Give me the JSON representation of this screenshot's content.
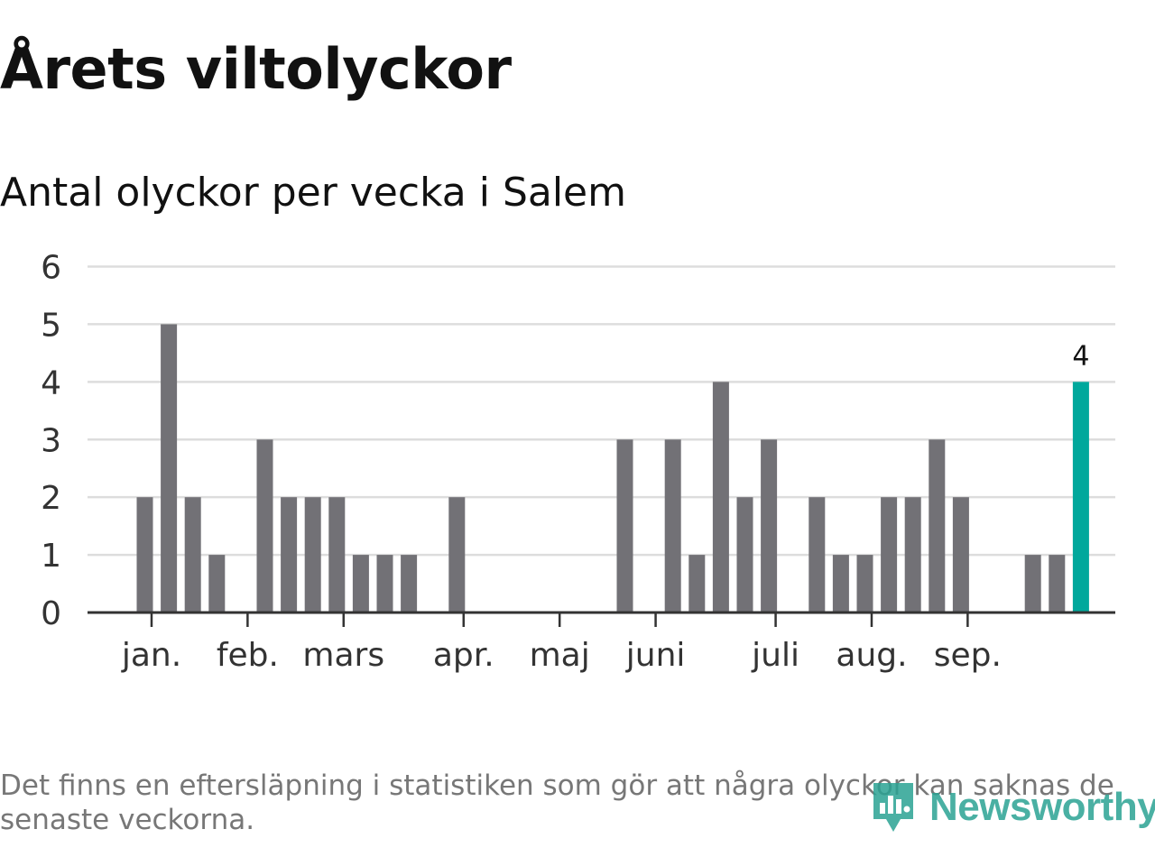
{
  "title": "Årets viltolyckor",
  "subtitle": "Antal olyckor per vecka i Salem",
  "footnote": "Det finns en eftersläpning i statistiken som gör att några olyckor kan saknas de senaste veckorna.",
  "logo": {
    "text": "Newsworthy",
    "icon": "newsworthy-logo-icon"
  },
  "colors": {
    "bar": "#727176",
    "highlight": "#00a89c",
    "grid": "#dddddd",
    "axis": "#333333"
  },
  "chart_data": {
    "type": "bar",
    "title": "Antal olyckor per vecka i Salem",
    "xlabel": "",
    "ylabel": "",
    "ylim": [
      0,
      6
    ],
    "yticks": [
      0,
      1,
      2,
      3,
      4,
      5,
      6
    ],
    "weeks": [
      1,
      2,
      3,
      4,
      5,
      6,
      7,
      8,
      9,
      10,
      11,
      12,
      13,
      14,
      15,
      16,
      17,
      18,
      19,
      20,
      21,
      22,
      23,
      24,
      25,
      26,
      27,
      28,
      29,
      30,
      31,
      32,
      33,
      34,
      35,
      36,
      37,
      38,
      39,
      40
    ],
    "values": [
      2,
      5,
      2,
      1,
      0,
      3,
      2,
      2,
      2,
      1,
      1,
      1,
      0,
      2,
      0,
      0,
      0,
      0,
      0,
      0,
      3,
      0,
      3,
      1,
      4,
      2,
      3,
      0,
      2,
      1,
      1,
      2,
      2,
      3,
      2,
      0,
      0,
      1,
      1,
      4
    ],
    "highlight_last": true,
    "last_value_label": "4",
    "months": [
      {
        "label": "jan.",
        "week": 1.3
      },
      {
        "label": "feb.",
        "week": 5.3
      },
      {
        "label": "mars",
        "week": 9.3
      },
      {
        "label": "apr.",
        "week": 14.3
      },
      {
        "label": "maj",
        "week": 18.3
      },
      {
        "label": "juni",
        "week": 22.3
      },
      {
        "label": "juli",
        "week": 27.3
      },
      {
        "label": "aug.",
        "week": 31.3
      },
      {
        "label": "sep.",
        "week": 35.3
      }
    ]
  }
}
